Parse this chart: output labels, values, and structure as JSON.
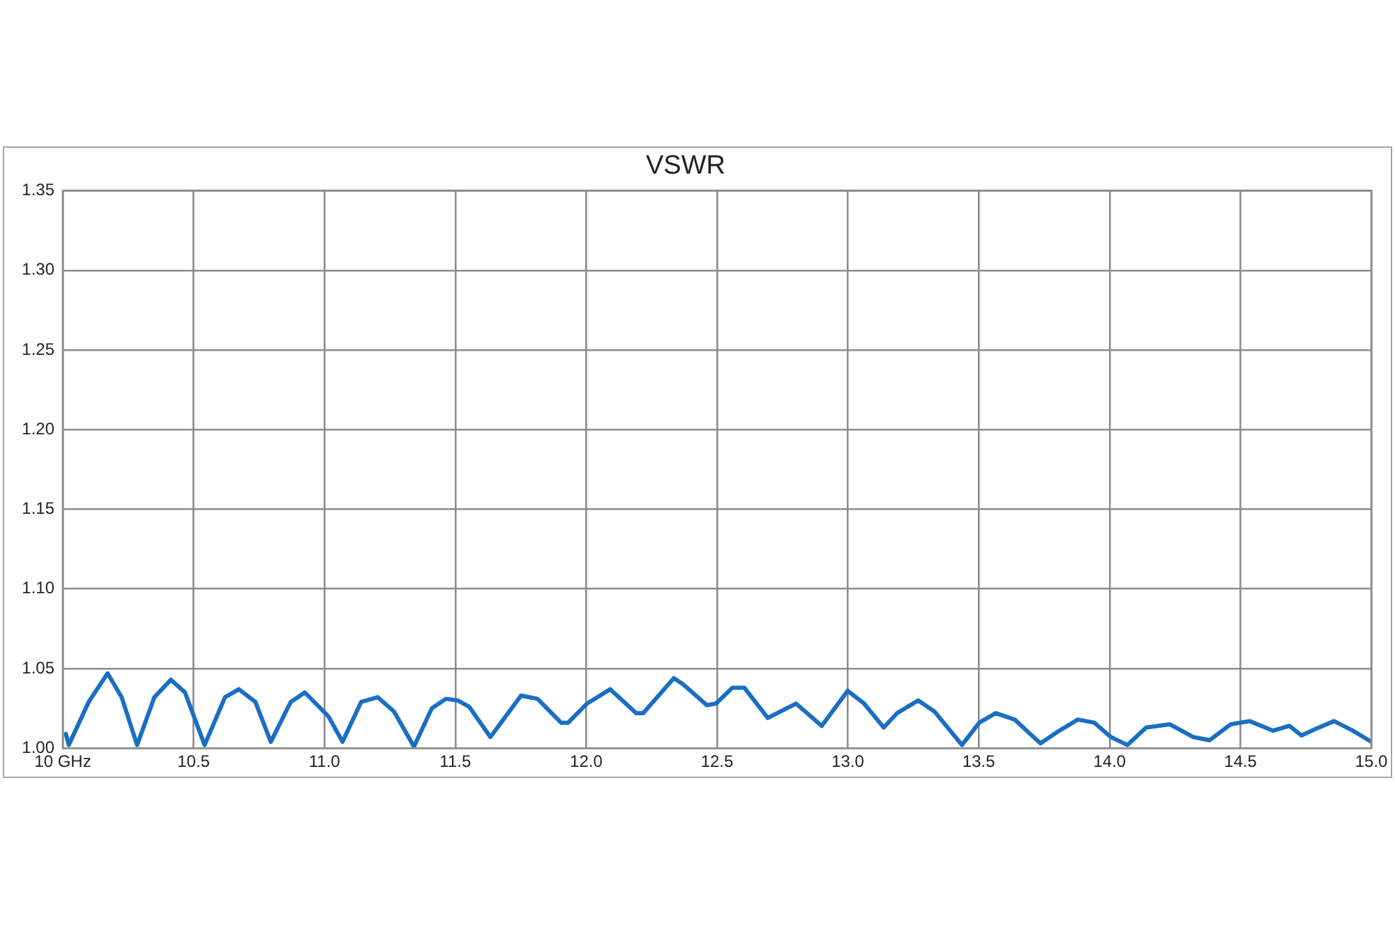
{
  "chart_data": {
    "type": "line",
    "title": "VSWR",
    "xlim": [
      10,
      15
    ],
    "xticks": [
      {
        "value": 10,
        "label": "10 GHz"
      },
      {
        "value": 10.5,
        "label": "10.5"
      },
      {
        "value": 11,
        "label": "11.0"
      },
      {
        "value": 11.5,
        "label": "11.5"
      },
      {
        "value": 12,
        "label": "12.0"
      },
      {
        "value": 12.5,
        "label": "12.5"
      },
      {
        "value": 13,
        "label": "13.0"
      },
      {
        "value": 13.5,
        "label": "13.5"
      },
      {
        "value": 14,
        "label": "14.0"
      },
      {
        "value": 14.5,
        "label": "14.5"
      },
      {
        "value": 15,
        "label": "15.0"
      }
    ],
    "ylim": [
      1,
      1.35
    ],
    "yticks": [
      {
        "value": 1,
        "label": "1.00"
      },
      {
        "value": 1.05,
        "label": "1.05"
      },
      {
        "value": 1.1,
        "label": "1.10"
      },
      {
        "value": 1.15,
        "label": "1.15"
      },
      {
        "value": 1.2,
        "label": "1.20"
      },
      {
        "value": 1.25,
        "label": "1.25"
      },
      {
        "value": 1.3,
        "label": "1.30"
      },
      {
        "value": 1.35,
        "label": "1.35"
      }
    ],
    "grid": true,
    "legend": false,
    "marker": "none",
    "line_style": "solid",
    "series": [
      {
        "color": "#1a6fc4",
        "x": [
          10.012,
          10.023,
          10.099,
          10.171,
          10.225,
          10.284,
          10.35,
          10.413,
          10.467,
          10.542,
          10.62,
          10.673,
          10.736,
          10.795,
          10.871,
          10.925,
          11.015,
          11.069,
          11.14,
          11.203,
          11.266,
          11.342,
          11.41,
          11.464,
          11.509,
          11.553,
          11.634,
          11.679,
          11.751,
          11.814,
          11.904,
          11.931,
          12.003,
          12.092,
          12.191,
          12.218,
          12.335,
          12.371,
          12.461,
          12.496,
          12.559,
          12.604,
          12.694,
          12.802,
          12.9,
          12.999,
          13.062,
          13.137,
          13.188,
          13.269,
          13.331,
          13.436,
          13.502,
          13.565,
          13.637,
          13.736,
          13.808,
          13.879,
          13.942,
          14.005,
          14.068,
          14.14,
          14.23,
          14.319,
          14.382,
          14.463,
          14.535,
          14.624,
          14.687,
          14.733,
          14.786,
          14.858,
          14.93,
          15.0
        ],
        "values": [
          1.009,
          1.002,
          1.029,
          1.047,
          1.032,
          1.002,
          1.032,
          1.043,
          1.035,
          1.002,
          1.032,
          1.037,
          1.029,
          1.004,
          1.029,
          1.035,
          1.02,
          1.004,
          1.029,
          1.032,
          1.023,
          1.001,
          1.025,
          1.031,
          1.03,
          1.026,
          1.007,
          1.017,
          1.033,
          1.031,
          1.016,
          1.016,
          1.028,
          1.037,
          1.022,
          1.022,
          1.044,
          1.04,
          1.027,
          1.028,
          1.038,
          1.038,
          1.019,
          1.028,
          1.014,
          1.036,
          1.028,
          1.013,
          1.022,
          1.03,
          1.023,
          1.002,
          1.016,
          1.022,
          1.018,
          1.003,
          1.011,
          1.018,
          1.016,
          1.007,
          1.002,
          1.013,
          1.015,
          1.007,
          1.005,
          1.015,
          1.017,
          1.011,
          1.014,
          1.008,
          1.012,
          1.017,
          1.011,
          1.004
        ]
      }
    ]
  }
}
